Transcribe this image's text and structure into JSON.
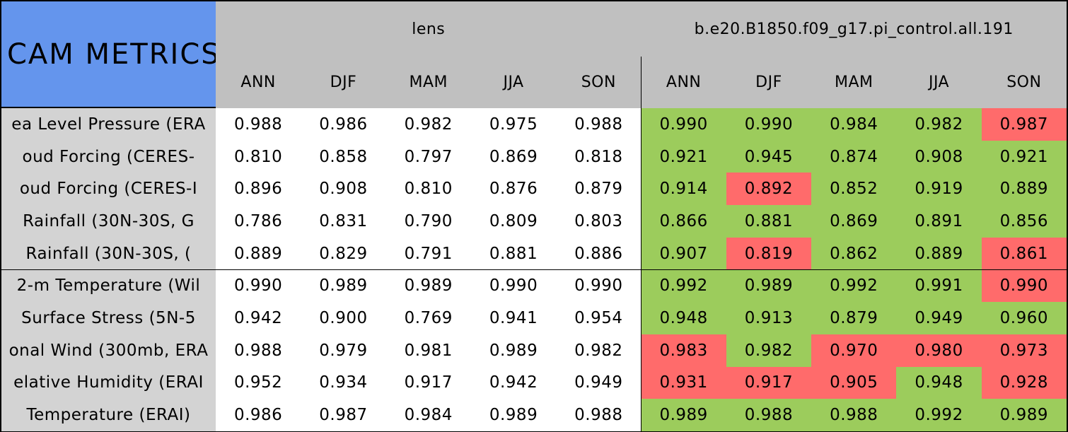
{
  "table": {
    "title": "CAM METRICS",
    "groups": [
      "lens",
      "b.e20.B1850.f09_g17.pi_control.all.191"
    ],
    "columns": [
      "ANN",
      "DJF",
      "MAM",
      "JJA",
      "SON",
      "ANN",
      "DJF",
      "MAM",
      "JJA",
      "SON"
    ],
    "rows": [
      {
        "label": "ea Level Pressure (ERA",
        "values": [
          "0.988",
          "0.986",
          "0.982",
          "0.975",
          "0.988",
          "0.990",
          "0.990",
          "0.984",
          "0.982",
          "0.987"
        ],
        "fills": [
          "#9ccc5c",
          "#9ccc5c",
          "#9ccc5c",
          "#9ccc5c",
          "#ff6b6b"
        ]
      },
      {
        "label": "oud Forcing (CERES-",
        "values": [
          "0.810",
          "0.858",
          "0.797",
          "0.869",
          "0.818",
          "0.921",
          "0.945",
          "0.874",
          "0.908",
          "0.921"
        ],
        "fills": [
          "#9ccc5c",
          "#9ccc5c",
          "#9ccc5c",
          "#9ccc5c",
          "#9ccc5c"
        ]
      },
      {
        "label": "oud Forcing (CERES-I",
        "values": [
          "0.896",
          "0.908",
          "0.810",
          "0.876",
          "0.879",
          "0.914",
          "0.892",
          "0.852",
          "0.919",
          "0.889"
        ],
        "fills": [
          "#9ccc5c",
          "#ff6b6b",
          "#9ccc5c",
          "#9ccc5c",
          "#9ccc5c"
        ]
      },
      {
        "label": "Rainfall (30N-30S, G",
        "values": [
          "0.786",
          "0.831",
          "0.790",
          "0.809",
          "0.803",
          "0.866",
          "0.881",
          "0.869",
          "0.891",
          "0.856"
        ],
        "fills": [
          "#9ccc5c",
          "#9ccc5c",
          "#9ccc5c",
          "#9ccc5c",
          "#9ccc5c"
        ]
      },
      {
        "label": "Rainfall (30N-30S, (",
        "values": [
          "0.889",
          "0.829",
          "0.791",
          "0.881",
          "0.886",
          "0.907",
          "0.819",
          "0.862",
          "0.889",
          "0.861"
        ],
        "fills": [
          "#9ccc5c",
          "#ff6b6b",
          "#9ccc5c",
          "#9ccc5c",
          "#ff6b6b"
        ]
      },
      {
        "label": "2-m Temperature (Wil",
        "values": [
          "0.990",
          "0.989",
          "0.989",
          "0.990",
          "0.990",
          "0.992",
          "0.989",
          "0.992",
          "0.991",
          "0.990"
        ],
        "fills": [
          "#9ccc5c",
          "#9ccc5c",
          "#9ccc5c",
          "#9ccc5c",
          "#ff6b6b"
        ]
      },
      {
        "label": "Surface Stress (5N-5",
        "values": [
          "0.942",
          "0.900",
          "0.769",
          "0.941",
          "0.954",
          "0.948",
          "0.913",
          "0.879",
          "0.949",
          "0.960"
        ],
        "fills": [
          "#9ccc5c",
          "#9ccc5c",
          "#9ccc5c",
          "#9ccc5c",
          "#9ccc5c"
        ]
      },
      {
        "label": "onal Wind (300mb, ERA",
        "values": [
          "0.988",
          "0.979",
          "0.981",
          "0.989",
          "0.982",
          "0.983",
          "0.982",
          "0.970",
          "0.980",
          "0.973"
        ],
        "fills": [
          "#ff6b6b",
          "#9ccc5c",
          "#ff6b6b",
          "#ff6b6b",
          "#ff6b6b"
        ]
      },
      {
        "label": "elative Humidity (ERAI",
        "values": [
          "0.952",
          "0.934",
          "0.917",
          "0.942",
          "0.949",
          "0.931",
          "0.917",
          "0.905",
          "0.948",
          "0.928"
        ],
        "fills": [
          "#ff6b6b",
          "#ff6b6b",
          "#ff6b6b",
          "#9ccc5c",
          "#ff6b6b"
        ]
      },
      {
        "label": "Temperature (ERAI)",
        "values": [
          "0.986",
          "0.987",
          "0.984",
          "0.989",
          "0.988",
          "0.989",
          "0.988",
          "0.988",
          "0.992",
          "0.989"
        ],
        "fills": [
          "#9ccc5c",
          "#9ccc5c",
          "#9ccc5c",
          "#9ccc5c",
          "#9ccc5c"
        ]
      }
    ]
  }
}
